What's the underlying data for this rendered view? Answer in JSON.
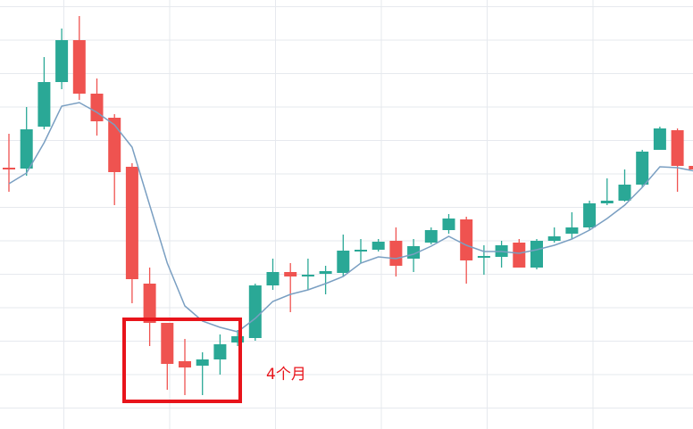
{
  "chart_data": {
    "type": "candlestick",
    "annotation": "4个月",
    "up_color": "#2aa896",
    "down_color": "#ef5350",
    "ma_color": "#7a9fc2",
    "ylim": [
      0,
      481
    ],
    "open": [
      293,
      292,
      339,
      389,
      436,
      376,
      349,
      294,
      163,
      119,
      76,
      71,
      78,
      97,
      102,
      161,
      176,
      171,
      174,
      175,
      199,
      201,
      211,
      191,
      209,
      223,
      235,
      192,
      193,
      209,
      181,
      211,
      219,
      226,
      253,
      256,
      274,
      313,
      335,
      295
    ],
    "close": [
      292,
      336,
      389,
      436,
      376,
      345,
      288,
      168,
      119,
      73,
      69,
      78,
      95,
      104,
      161,
      176,
      171,
      173,
      177,
      200,
      201,
      210,
      183,
      205,
      223,
      236,
      189,
      194,
      206,
      181,
      211,
      216,
      226,
      253,
      256,
      274,
      311,
      337,
      295,
      291
    ],
    "high": [
      331,
      361,
      417,
      449,
      463,
      393,
      353,
      298,
      181,
      119,
      101,
      86,
      106,
      111,
      163,
      191,
      186,
      191,
      183,
      218,
      213,
      213,
      226,
      213,
      226,
      241,
      238,
      206,
      211,
      213,
      213,
      226,
      243,
      256,
      281,
      291,
      313,
      339,
      337,
      301
    ],
    "low": [
      266,
      284,
      336,
      381,
      369,
      329,
      251,
      141,
      93,
      44,
      38,
      38,
      61,
      93,
      99,
      156,
      131,
      156,
      151,
      171,
      186,
      199,
      171,
      176,
      207,
      219,
      163,
      173,
      181,
      181,
      179,
      209,
      213,
      223,
      251,
      255,
      271,
      313,
      266,
      271
    ],
    "ma": [
      275,
      287,
      321,
      362,
      366,
      355,
      341,
      316,
      251,
      186,
      138,
      121,
      114,
      109,
      124,
      143,
      151,
      156,
      163,
      171,
      186,
      193,
      191,
      196,
      205,
      216,
      206,
      199,
      199,
      197,
      201,
      206,
      213,
      223,
      236,
      251,
      271,
      294,
      293,
      289
    ]
  }
}
